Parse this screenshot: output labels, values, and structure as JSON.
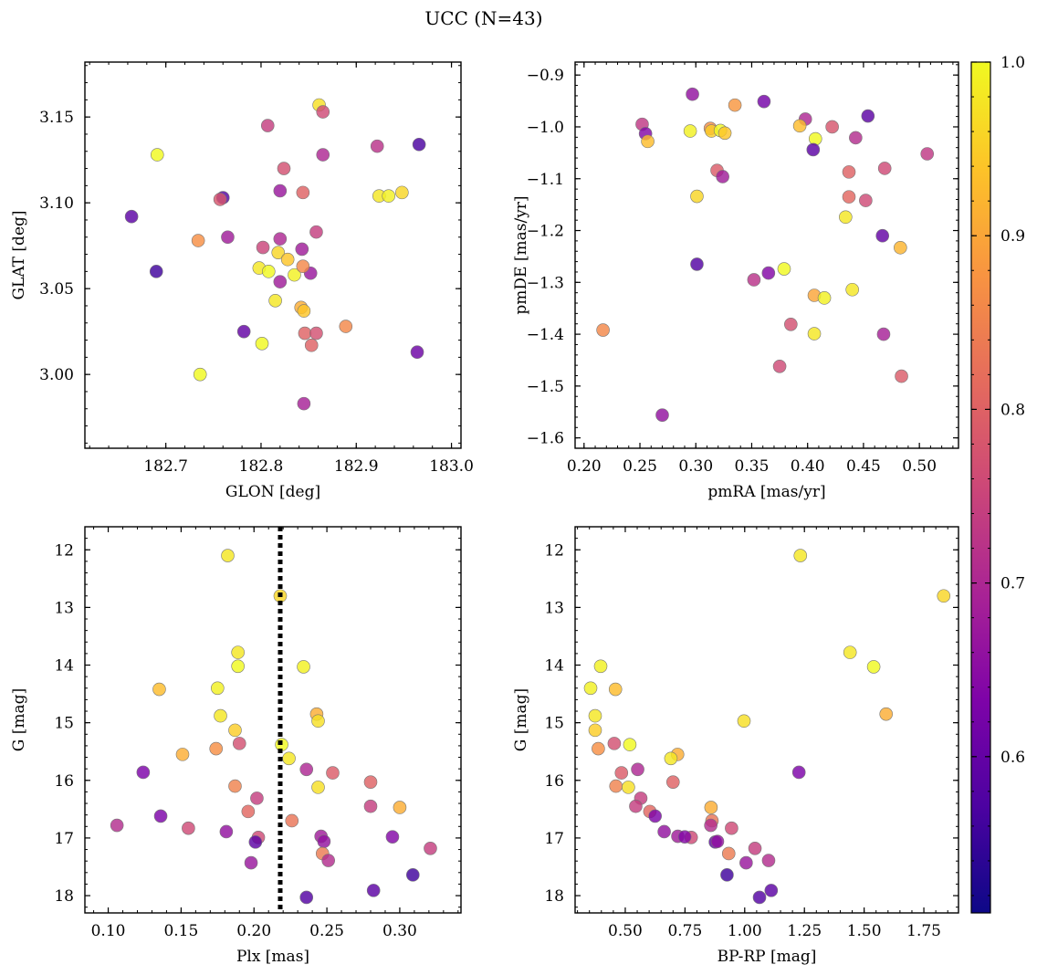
{
  "figure": {
    "title": "UCC (N=43)"
  },
  "colorbar": {
    "min": 0.51,
    "max": 1.0,
    "ticks": [
      {
        "v": 0.6,
        "label": "0.6"
      },
      {
        "v": 0.7,
        "label": "0.7"
      },
      {
        "v": 0.8,
        "label": "0.8"
      },
      {
        "v": 0.9,
        "label": "0.9"
      },
      {
        "v": 1.0,
        "label": "1.0"
      }
    ],
    "colormap": "plasma"
  },
  "chart_data": [
    {
      "type": "scatter",
      "panel": "top-left",
      "xlabel": "GLON [deg]",
      "ylabel": "GLAT [deg]",
      "xlim": [
        182.615,
        183.01
      ],
      "ylim": [
        2.957,
        3.182
      ],
      "invert_y": false,
      "xticks": [
        {
          "v": 182.7,
          "label": "182.7"
        },
        {
          "v": 182.8,
          "label": "182.8"
        },
        {
          "v": 182.9,
          "label": "182.9"
        },
        {
          "v": 183.0,
          "label": "183.0"
        }
      ],
      "yticks": [
        {
          "v": 3.0,
          "label": "3.00"
        },
        {
          "v": 3.05,
          "label": "3.05"
        },
        {
          "v": 3.1,
          "label": "3.10"
        },
        {
          "v": 3.15,
          "label": "3.15"
        }
      ],
      "points": [
        {
          "x": 182.861,
          "y": 3.157,
          "c": 0.97
        },
        {
          "x": 182.865,
          "y": 3.153,
          "c": 0.76
        },
        {
          "x": 182.807,
          "y": 3.145,
          "c": 0.74
        },
        {
          "x": 182.922,
          "y": 3.133,
          "c": 0.72
        },
        {
          "x": 182.966,
          "y": 3.134,
          "c": 0.57
        },
        {
          "x": 182.691,
          "y": 3.128,
          "c": 1.0
        },
        {
          "x": 182.865,
          "y": 3.128,
          "c": 0.7
        },
        {
          "x": 182.824,
          "y": 3.12,
          "c": 0.77
        },
        {
          "x": 182.82,
          "y": 3.107,
          "c": 0.67
        },
        {
          "x": 182.844,
          "y": 3.106,
          "c": 0.8
        },
        {
          "x": 182.924,
          "y": 3.104,
          "c": 0.98
        },
        {
          "x": 182.934,
          "y": 3.104,
          "c": 0.99
        },
        {
          "x": 182.948,
          "y": 3.106,
          "c": 0.96
        },
        {
          "x": 182.76,
          "y": 3.103,
          "c": 0.58
        },
        {
          "x": 182.757,
          "y": 3.102,
          "c": 0.78
        },
        {
          "x": 182.664,
          "y": 3.092,
          "c": 0.59
        },
        {
          "x": 182.734,
          "y": 3.078,
          "c": 0.87
        },
        {
          "x": 182.858,
          "y": 3.083,
          "c": 0.74
        },
        {
          "x": 182.765,
          "y": 3.08,
          "c": 0.68
        },
        {
          "x": 182.82,
          "y": 3.079,
          "c": 0.7
        },
        {
          "x": 182.802,
          "y": 3.074,
          "c": 0.75
        },
        {
          "x": 182.843,
          "y": 3.073,
          "c": 0.68
        },
        {
          "x": 182.818,
          "y": 3.071,
          "c": 0.96
        },
        {
          "x": 182.828,
          "y": 3.067,
          "c": 0.94
        },
        {
          "x": 182.69,
          "y": 3.06,
          "c": 0.56
        },
        {
          "x": 182.798,
          "y": 3.062,
          "c": 0.98
        },
        {
          "x": 182.808,
          "y": 3.06,
          "c": 1.0
        },
        {
          "x": 182.835,
          "y": 3.058,
          "c": 0.99
        },
        {
          "x": 182.852,
          "y": 3.059,
          "c": 0.67
        },
        {
          "x": 182.82,
          "y": 3.054,
          "c": 0.68
        },
        {
          "x": 182.815,
          "y": 3.043,
          "c": 0.98
        },
        {
          "x": 182.842,
          "y": 3.039,
          "c": 0.91
        },
        {
          "x": 182.845,
          "y": 3.037,
          "c": 0.94
        },
        {
          "x": 182.844,
          "y": 3.063,
          "c": 0.86
        },
        {
          "x": 182.782,
          "y": 3.025,
          "c": 0.6
        },
        {
          "x": 182.846,
          "y": 3.024,
          "c": 0.8
        },
        {
          "x": 182.858,
          "y": 3.024,
          "c": 0.77
        },
        {
          "x": 182.889,
          "y": 3.028,
          "c": 0.86
        },
        {
          "x": 182.801,
          "y": 3.018,
          "c": 1.0
        },
        {
          "x": 182.853,
          "y": 3.017,
          "c": 0.8
        },
        {
          "x": 182.736,
          "y": 3.0,
          "c": 1.0
        },
        {
          "x": 182.964,
          "y": 3.013,
          "c": 0.61
        },
        {
          "x": 182.845,
          "y": 2.983,
          "c": 0.69
        }
      ]
    },
    {
      "type": "scatter",
      "panel": "top-right",
      "xlabel": "pmRA [mas/yr]",
      "ylabel": "pmDE [mas/yr]",
      "xlim": [
        0.192,
        0.535
      ],
      "ylim": [
        -1.62,
        -0.875
      ],
      "invert_y": false,
      "xticks": [
        {
          "v": 0.2,
          "label": "0.20"
        },
        {
          "v": 0.25,
          "label": "0.25"
        },
        {
          "v": 0.3,
          "label": "0.30"
        },
        {
          "v": 0.35,
          "label": "0.35"
        },
        {
          "v": 0.4,
          "label": "0.40"
        },
        {
          "v": 0.45,
          "label": "0.45"
        },
        {
          "v": 0.5,
          "label": "0.50"
        }
      ],
      "yticks": [
        {
          "v": -1.6,
          "label": "−1.6"
        },
        {
          "v": -1.5,
          "label": "−1.5"
        },
        {
          "v": -1.4,
          "label": "−1.4"
        },
        {
          "v": -1.3,
          "label": "−1.3"
        },
        {
          "v": -1.2,
          "label": "−1.2"
        },
        {
          "v": -1.1,
          "label": "−1.1"
        },
        {
          "v": -1.0,
          "label": "−1.0"
        },
        {
          "v": -0.9,
          "label": "−0.9"
        }
      ],
      "points": [
        {
          "x": 0.297,
          "y": -0.937,
          "c": 0.66
        },
        {
          "x": 0.361,
          "y": -0.951,
          "c": 0.62
        },
        {
          "x": 0.335,
          "y": -0.958,
          "c": 0.88
        },
        {
          "x": 0.454,
          "y": -0.979,
          "c": 0.59
        },
        {
          "x": 0.398,
          "y": -0.985,
          "c": 0.7
        },
        {
          "x": 0.252,
          "y": -0.995,
          "c": 0.73
        },
        {
          "x": 0.422,
          "y": -1.0,
          "c": 0.78
        },
        {
          "x": 0.393,
          "y": -0.998,
          "c": 0.93
        },
        {
          "x": 0.313,
          "y": -1.003,
          "c": 0.87
        },
        {
          "x": 0.314,
          "y": -1.008,
          "c": 0.95
        },
        {
          "x": 0.295,
          "y": -1.008,
          "c": 0.99
        },
        {
          "x": 0.322,
          "y": -1.007,
          "c": 1.0
        },
        {
          "x": 0.326,
          "y": -1.012,
          "c": 0.94
        },
        {
          "x": 0.255,
          "y": -1.013,
          "c": 0.64
        },
        {
          "x": 0.257,
          "y": -1.028,
          "c": 0.93
        },
        {
          "x": 0.443,
          "y": -1.021,
          "c": 0.71
        },
        {
          "x": 0.407,
          "y": -1.023,
          "c": 1.0
        },
        {
          "x": 0.405,
          "y": -1.044,
          "c": 0.59
        },
        {
          "x": 0.507,
          "y": -1.052,
          "c": 0.73
        },
        {
          "x": 0.469,
          "y": -1.08,
          "c": 0.76
        },
        {
          "x": 0.319,
          "y": -1.084,
          "c": 0.79
        },
        {
          "x": 0.437,
          "y": -1.087,
          "c": 0.8
        },
        {
          "x": 0.324,
          "y": -1.096,
          "c": 0.68
        },
        {
          "x": 0.301,
          "y": -1.134,
          "c": 0.96
        },
        {
          "x": 0.437,
          "y": -1.135,
          "c": 0.81
        },
        {
          "x": 0.452,
          "y": -1.142,
          "c": 0.76
        },
        {
          "x": 0.434,
          "y": -1.174,
          "c": 0.98
        },
        {
          "x": 0.467,
          "y": -1.21,
          "c": 0.6
        },
        {
          "x": 0.483,
          "y": -1.233,
          "c": 0.92
        },
        {
          "x": 0.301,
          "y": -1.265,
          "c": 0.58
        },
        {
          "x": 0.379,
          "y": -1.274,
          "c": 1.0
        },
        {
          "x": 0.365,
          "y": -1.282,
          "c": 0.64
        },
        {
          "x": 0.352,
          "y": -1.295,
          "c": 0.72
        },
        {
          "x": 0.44,
          "y": -1.314,
          "c": 0.98
        },
        {
          "x": 0.406,
          "y": -1.325,
          "c": 0.9
        },
        {
          "x": 0.415,
          "y": -1.33,
          "c": 0.99
        },
        {
          "x": 0.217,
          "y": -1.392,
          "c": 0.86
        },
        {
          "x": 0.385,
          "y": -1.381,
          "c": 0.77
        },
        {
          "x": 0.406,
          "y": -1.399,
          "c": 0.98
        },
        {
          "x": 0.468,
          "y": -1.4,
          "c": 0.69
        },
        {
          "x": 0.375,
          "y": -1.462,
          "c": 0.76
        },
        {
          "x": 0.484,
          "y": -1.481,
          "c": 0.79
        },
        {
          "x": 0.27,
          "y": -1.556,
          "c": 0.66
        }
      ]
    },
    {
      "type": "scatter",
      "panel": "bottom-left",
      "xlabel": "Plx [mas]",
      "ylabel": "G [mag]",
      "xlim": [
        0.084,
        0.342
      ],
      "ylim": [
        18.3,
        11.6
      ],
      "invert_y": true,
      "reference_line": {
        "x": 0.218,
        "style": "dotted"
      },
      "xticks": [
        {
          "v": 0.1,
          "label": "0.10"
        },
        {
          "v": 0.15,
          "label": "0.15"
        },
        {
          "v": 0.2,
          "label": "0.20"
        },
        {
          "v": 0.25,
          "label": "0.25"
        },
        {
          "v": 0.3,
          "label": "0.30"
        }
      ],
      "yticks": [
        {
          "v": 12,
          "label": "12"
        },
        {
          "v": 13,
          "label": "13"
        },
        {
          "v": 14,
          "label": "14"
        },
        {
          "v": 15,
          "label": "15"
        },
        {
          "v": 16,
          "label": "16"
        },
        {
          "v": 17,
          "label": "17"
        },
        {
          "v": 18,
          "label": "18"
        }
      ],
      "points": [
        {
          "x": 0.182,
          "y": 12.1,
          "c": 0.98
        },
        {
          "x": 0.218,
          "y": 12.8,
          "c": 0.96
        },
        {
          "x": 0.189,
          "y": 13.78,
          "c": 0.98
        },
        {
          "x": 0.189,
          "y": 14.02,
          "c": 1.0
        },
        {
          "x": 0.234,
          "y": 14.03,
          "c": 0.99
        },
        {
          "x": 0.175,
          "y": 14.4,
          "c": 0.99
        },
        {
          "x": 0.135,
          "y": 14.42,
          "c": 0.93
        },
        {
          "x": 0.177,
          "y": 14.88,
          "c": 0.98
        },
        {
          "x": 0.243,
          "y": 14.85,
          "c": 0.91
        },
        {
          "x": 0.244,
          "y": 14.97,
          "c": 0.97
        },
        {
          "x": 0.187,
          "y": 15.13,
          "c": 0.95
        },
        {
          "x": 0.219,
          "y": 15.38,
          "c": 1.0
        },
        {
          "x": 0.19,
          "y": 15.36,
          "c": 0.77
        },
        {
          "x": 0.174,
          "y": 15.45,
          "c": 0.87
        },
        {
          "x": 0.151,
          "y": 15.55,
          "c": 0.91
        },
        {
          "x": 0.224,
          "y": 15.62,
          "c": 0.98
        },
        {
          "x": 0.236,
          "y": 15.81,
          "c": 0.7
        },
        {
          "x": 0.124,
          "y": 15.86,
          "c": 0.63
        },
        {
          "x": 0.254,
          "y": 15.87,
          "c": 0.79
        },
        {
          "x": 0.187,
          "y": 16.1,
          "c": 0.85
        },
        {
          "x": 0.244,
          "y": 16.12,
          "c": 0.97
        },
        {
          "x": 0.28,
          "y": 16.03,
          "c": 0.8
        },
        {
          "x": 0.202,
          "y": 16.31,
          "c": 0.74
        },
        {
          "x": 0.28,
          "y": 16.45,
          "c": 0.74
        },
        {
          "x": 0.3,
          "y": 16.47,
          "c": 0.91
        },
        {
          "x": 0.196,
          "y": 16.54,
          "c": 0.81
        },
        {
          "x": 0.136,
          "y": 16.62,
          "c": 0.63
        },
        {
          "x": 0.226,
          "y": 16.7,
          "c": 0.83
        },
        {
          "x": 0.106,
          "y": 16.78,
          "c": 0.71
        },
        {
          "x": 0.155,
          "y": 16.83,
          "c": 0.76
        },
        {
          "x": 0.181,
          "y": 16.89,
          "c": 0.66
        },
        {
          "x": 0.203,
          "y": 16.99,
          "c": 0.76
        },
        {
          "x": 0.246,
          "y": 16.97,
          "c": 0.68
        },
        {
          "x": 0.295,
          "y": 16.98,
          "c": 0.64
        },
        {
          "x": 0.201,
          "y": 17.07,
          "c": 0.59
        },
        {
          "x": 0.248,
          "y": 17.06,
          "c": 0.66
        },
        {
          "x": 0.321,
          "y": 17.18,
          "c": 0.74
        },
        {
          "x": 0.247,
          "y": 17.27,
          "c": 0.84
        },
        {
          "x": 0.251,
          "y": 17.39,
          "c": 0.71
        },
        {
          "x": 0.198,
          "y": 17.43,
          "c": 0.67
        },
        {
          "x": 0.309,
          "y": 17.64,
          "c": 0.56
        },
        {
          "x": 0.282,
          "y": 17.91,
          "c": 0.59
        },
        {
          "x": 0.236,
          "y": 18.03,
          "c": 0.58
        }
      ]
    },
    {
      "type": "scatter",
      "panel": "bottom-right",
      "xlabel": "BP-RP [mag]",
      "ylabel": "G [mag]",
      "xlim": [
        0.29,
        1.895
      ],
      "ylim": [
        18.3,
        11.6
      ],
      "invert_y": true,
      "xticks": [
        {
          "v": 0.5,
          "label": "0.50"
        },
        {
          "v": 0.75,
          "label": "0.75"
        },
        {
          "v": 1.0,
          "label": "1.00"
        },
        {
          "v": 1.25,
          "label": "1.25"
        },
        {
          "v": 1.5,
          "label": "1.50"
        },
        {
          "v": 1.75,
          "label": "1.75"
        }
      ],
      "yticks": [
        {
          "v": 12,
          "label": "12"
        },
        {
          "v": 13,
          "label": "13"
        },
        {
          "v": 14,
          "label": "14"
        },
        {
          "v": 15,
          "label": "15"
        },
        {
          "v": 16,
          "label": "16"
        },
        {
          "v": 17,
          "label": "17"
        },
        {
          "v": 18,
          "label": "18"
        }
      ],
      "points": [
        {
          "x": 1.233,
          "y": 12.1,
          "c": 0.98
        },
        {
          "x": 1.833,
          "y": 12.8,
          "c": 0.96
        },
        {
          "x": 1.441,
          "y": 13.78,
          "c": 0.98
        },
        {
          "x": 1.54,
          "y": 14.03,
          "c": 1.0
        },
        {
          "x": 0.397,
          "y": 14.02,
          "c": 0.99
        },
        {
          "x": 0.355,
          "y": 14.4,
          "c": 0.99
        },
        {
          "x": 0.459,
          "y": 14.42,
          "c": 0.93
        },
        {
          "x": 0.374,
          "y": 14.88,
          "c": 0.98
        },
        {
          "x": 1.592,
          "y": 14.85,
          "c": 0.91
        },
        {
          "x": 0.997,
          "y": 14.97,
          "c": 0.97
        },
        {
          "x": 0.374,
          "y": 15.13,
          "c": 0.95
        },
        {
          "x": 0.519,
          "y": 15.38,
          "c": 1.0
        },
        {
          "x": 0.454,
          "y": 15.36,
          "c": 0.77
        },
        {
          "x": 0.387,
          "y": 15.45,
          "c": 0.87
        },
        {
          "x": 0.719,
          "y": 15.55,
          "c": 0.91
        },
        {
          "x": 0.691,
          "y": 15.62,
          "c": 0.98
        },
        {
          "x": 0.552,
          "y": 15.81,
          "c": 0.7
        },
        {
          "x": 1.227,
          "y": 15.86,
          "c": 0.63
        },
        {
          "x": 0.484,
          "y": 15.87,
          "c": 0.79
        },
        {
          "x": 0.461,
          "y": 16.1,
          "c": 0.85
        },
        {
          "x": 0.513,
          "y": 16.12,
          "c": 0.97
        },
        {
          "x": 0.7,
          "y": 16.03,
          "c": 0.8
        },
        {
          "x": 0.565,
          "y": 16.31,
          "c": 0.74
        },
        {
          "x": 0.544,
          "y": 16.45,
          "c": 0.74
        },
        {
          "x": 0.859,
          "y": 16.47,
          "c": 0.91
        },
        {
          "x": 0.603,
          "y": 16.54,
          "c": 0.81
        },
        {
          "x": 0.625,
          "y": 16.62,
          "c": 0.63
        },
        {
          "x": 0.863,
          "y": 16.7,
          "c": 0.83
        },
        {
          "x": 0.858,
          "y": 16.78,
          "c": 0.71
        },
        {
          "x": 0.945,
          "y": 16.83,
          "c": 0.76
        },
        {
          "x": 0.663,
          "y": 16.89,
          "c": 0.66
        },
        {
          "x": 0.776,
          "y": 16.99,
          "c": 0.76
        },
        {
          "x": 0.72,
          "y": 16.97,
          "c": 0.68
        },
        {
          "x": 0.749,
          "y": 16.98,
          "c": 0.64
        },
        {
          "x": 0.877,
          "y": 17.07,
          "c": 0.59
        },
        {
          "x": 0.886,
          "y": 17.06,
          "c": 0.66
        },
        {
          "x": 1.043,
          "y": 17.18,
          "c": 0.74
        },
        {
          "x": 0.933,
          "y": 17.27,
          "c": 0.84
        },
        {
          "x": 1.1,
          "y": 17.39,
          "c": 0.71
        },
        {
          "x": 1.006,
          "y": 17.43,
          "c": 0.67
        },
        {
          "x": 0.926,
          "y": 17.64,
          "c": 0.56
        },
        {
          "x": 1.111,
          "y": 17.91,
          "c": 0.59
        },
        {
          "x": 1.062,
          "y": 18.03,
          "c": 0.58
        }
      ]
    }
  ]
}
